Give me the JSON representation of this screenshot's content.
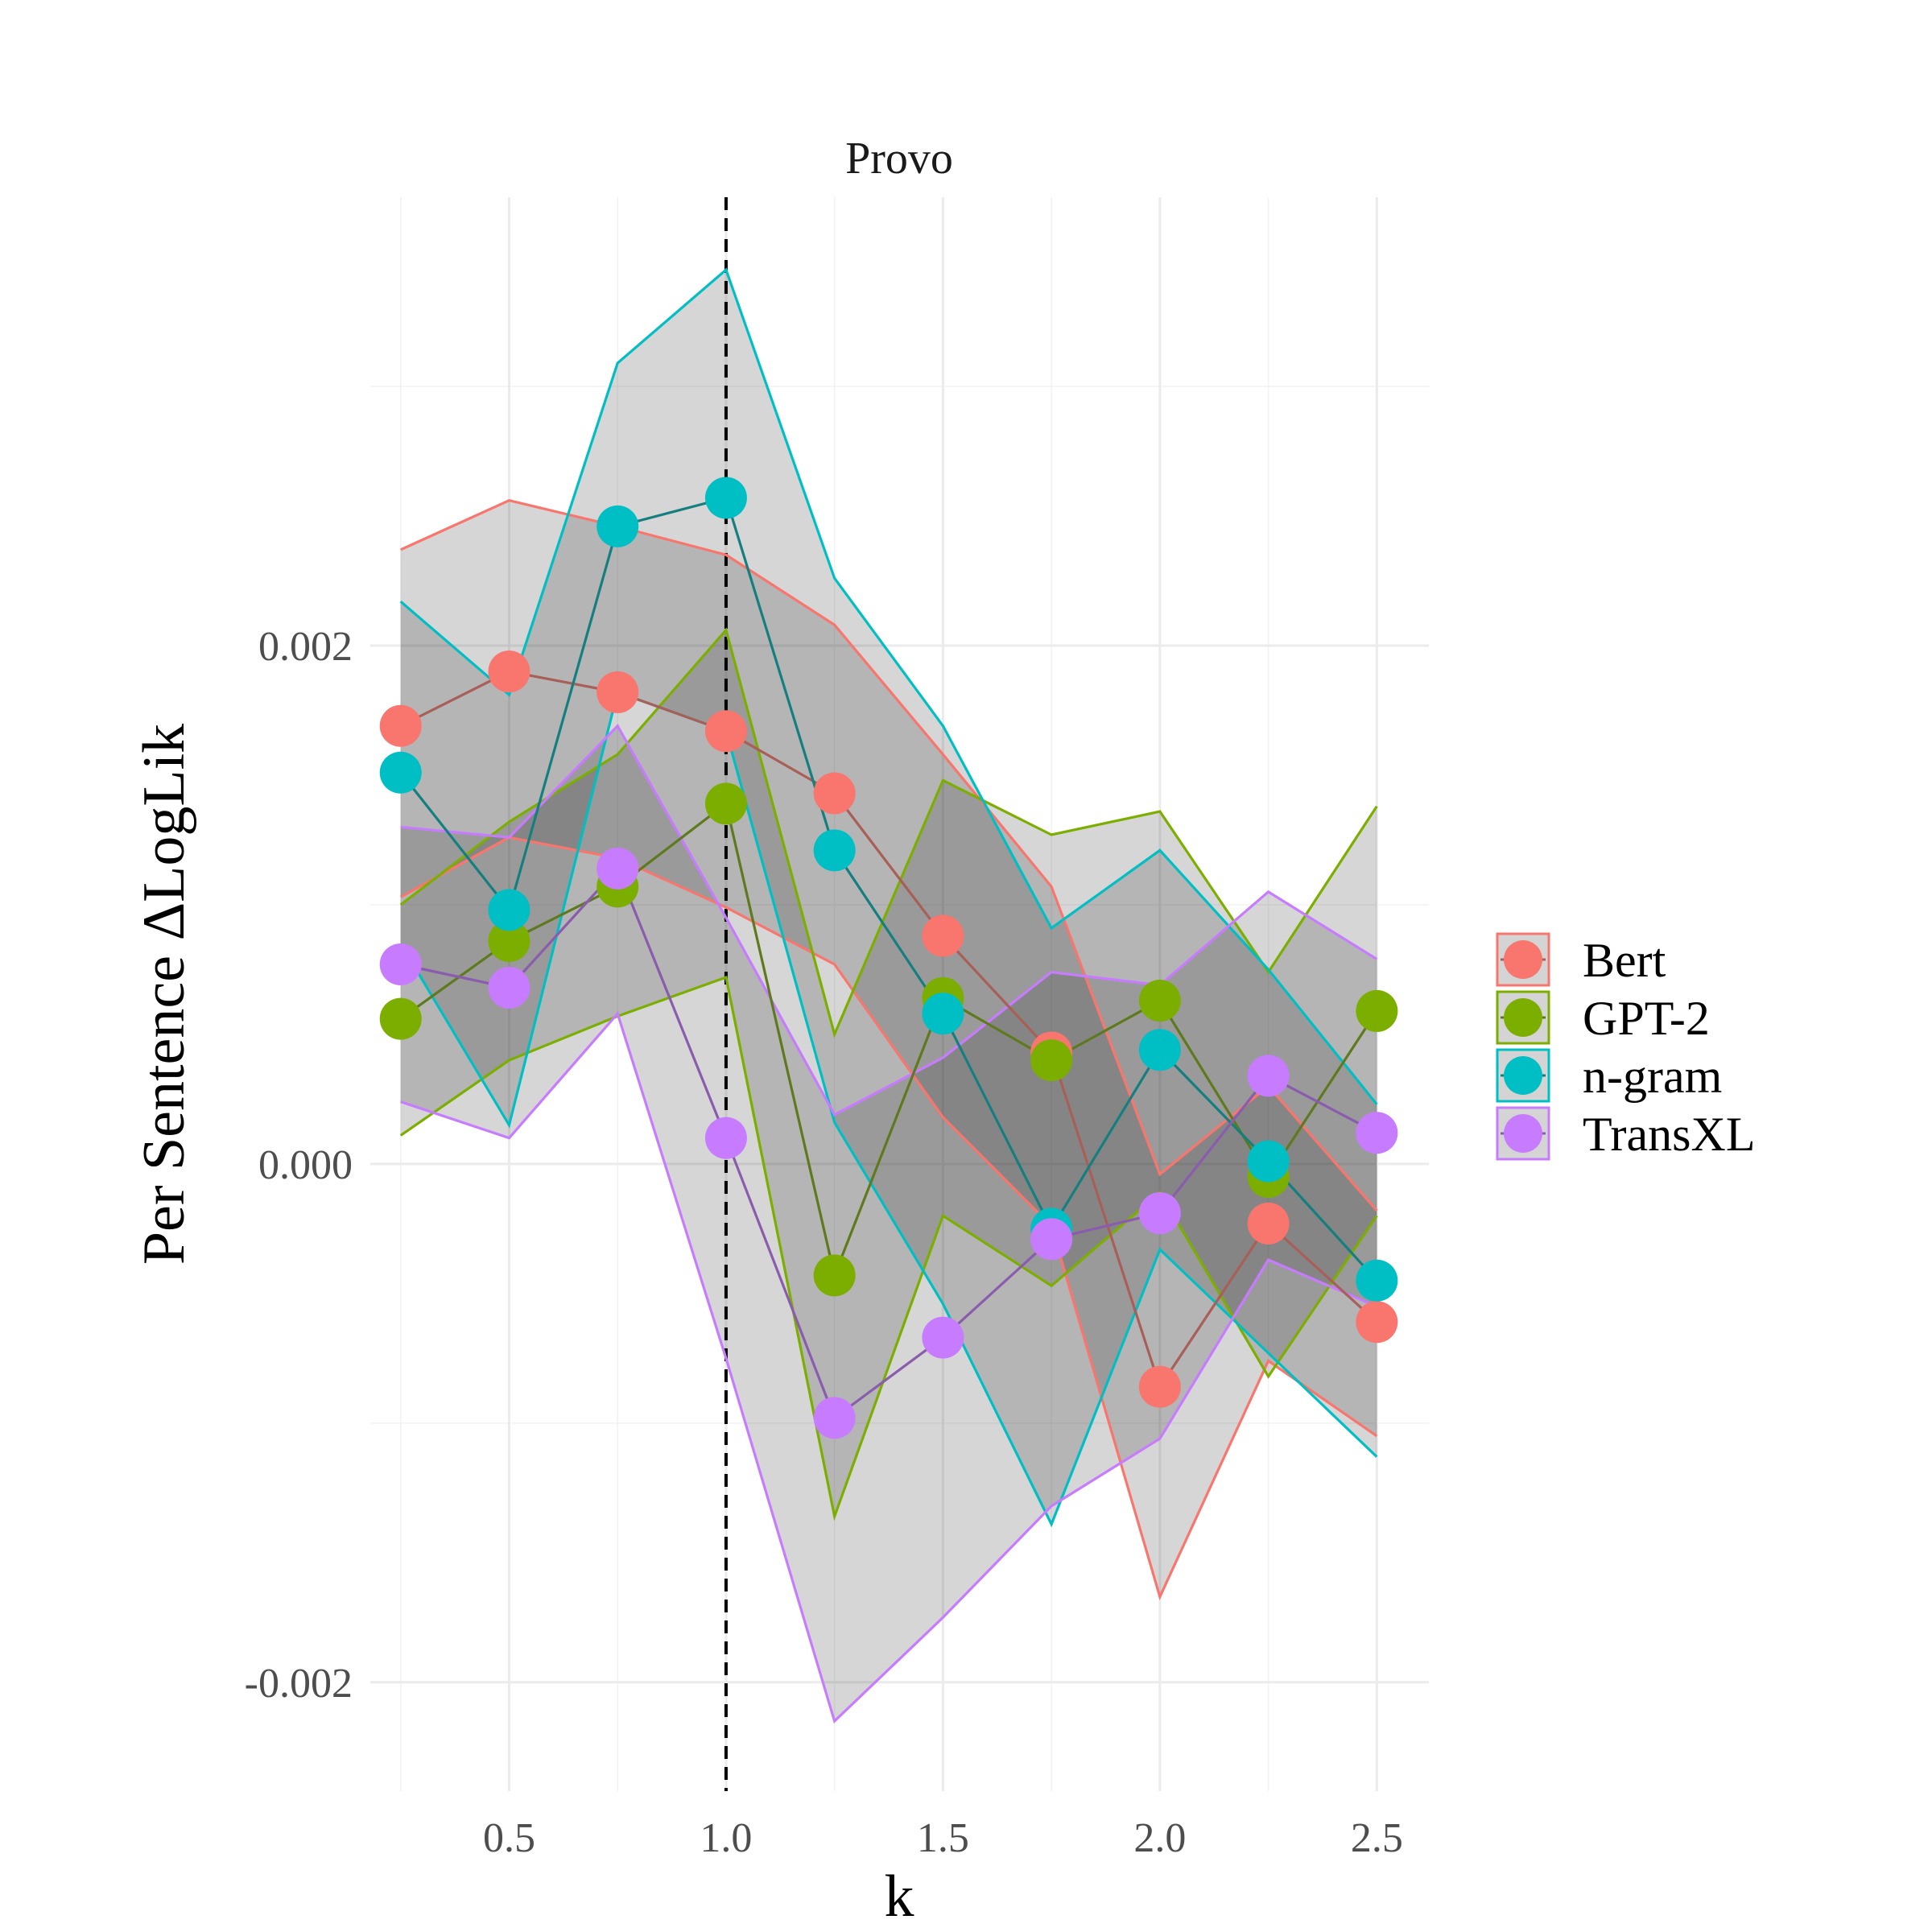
{
  "chart_data": {
    "type": "line",
    "title": "Provo",
    "xlabel": "k",
    "ylabel": "Per Sentence ΔLogLik",
    "xlim": [
      0.18,
      2.62
    ],
    "ylim": [
      -0.00242,
      0.00373
    ],
    "x_ticks": [
      0.5,
      1.0,
      1.5,
      2.0,
      2.5
    ],
    "x_tick_labels": [
      "0.5",
      "1.0",
      "1.5",
      "2.0",
      "2.5"
    ],
    "y_ticks": [
      -0.002,
      0.0,
      0.002
    ],
    "y_tick_labels": [
      "-0.002",
      "0.000",
      "0.002"
    ],
    "vline_x": 1.0,
    "grid": true,
    "legend_position": "right",
    "x": [
      0.25,
      0.5,
      0.75,
      1.0,
      1.25,
      1.5,
      1.75,
      2.0,
      2.25,
      2.5
    ],
    "series": [
      {
        "name": "Bert",
        "color": "#F8766D",
        "dark": "#A85F58",
        "values": [
          0.00169,
          0.0019,
          0.00182,
          0.00167,
          0.00143,
          0.00088,
          0.00043,
          -0.00086,
          -0.00023,
          -0.00061
        ],
        "upper": [
          0.00237,
          0.00256,
          0.00246,
          0.00235,
          0.00208,
          0.00158,
          0.00107,
          -4e-05,
          0.0003,
          -0.00018
        ],
        "lower": [
          0.00103,
          0.00126,
          0.00118,
          0.00099,
          0.00077,
          0.00018,
          -0.00024,
          -0.00167,
          -0.00076,
          -0.00105
        ]
      },
      {
        "name": "GPT-2",
        "color": "#7CAE00",
        "dark": "#5F7A1E",
        "values": [
          0.00056,
          0.00086,
          0.00107,
          0.00139,
          -0.00043,
          0.00064,
          0.0004,
          0.00063,
          -5e-05,
          0.00059
        ],
        "upper": [
          0.001,
          0.00132,
          0.00158,
          0.00206,
          0.0005,
          0.00148,
          0.00127,
          0.00136,
          0.00074,
          0.00138
        ],
        "lower": [
          0.00011,
          0.0004,
          0.00057,
          0.00072,
          -0.00136,
          -0.0002,
          -0.00047,
          -0.00011,
          -0.00082,
          -0.0002
        ]
      },
      {
        "name": "n-gram",
        "color": "#00BFC4",
        "dark": "#157F80",
        "values": [
          0.00151,
          0.00098,
          0.00246,
          0.00257,
          0.00121,
          0.00058,
          -0.00025,
          0.00044,
          1e-05,
          -0.00045
        ],
        "upper": [
          0.00217,
          0.00181,
          0.00309,
          0.00345,
          0.00226,
          0.00169,
          0.00091,
          0.00121,
          0.00075,
          0.00023
        ],
        "lower": [
          0.00085,
          0.00015,
          0.00182,
          0.00167,
          0.00016,
          -0.00054,
          -0.00139,
          -0.00033,
          -0.00073,
          -0.00113
        ]
      },
      {
        "name": "TransXL",
        "color": "#C77CFF",
        "dark": "#8A5CAD",
        "values": [
          0.00077,
          0.00068,
          0.00114,
          0.0001,
          -0.00098,
          -0.00067,
          -0.00029,
          -0.00019,
          0.00034,
          0.00012
        ],
        "upper": [
          0.0013,
          0.00126,
          0.00169,
          0.00095,
          0.00019,
          0.00041,
          0.00074,
          0.00069,
          0.00105,
          0.00079
        ],
        "lower": [
          0.00024,
          0.0001,
          0.00058,
          -0.00075,
          -0.00215,
          -0.00175,
          -0.00132,
          -0.00106,
          -0.00037,
          -0.00055
        ]
      }
    ]
  }
}
